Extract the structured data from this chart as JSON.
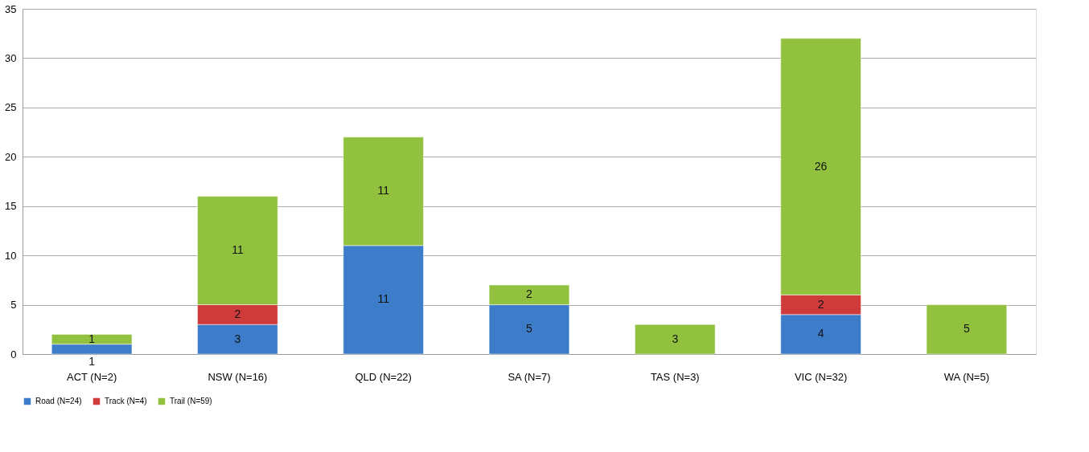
{
  "chart_data": {
    "type": "bar",
    "stacked": true,
    "categories": [
      "ACT (N=2)",
      "NSW (N=16)",
      "QLD (N=22)",
      "SA (N=7)",
      "TAS (N=3)",
      "VIC (N=32)",
      "WA (N=5)"
    ],
    "series": [
      {
        "name": "Road (N=24)",
        "color": "#3d7cc9",
        "values": [
          1,
          3,
          11,
          5,
          null,
          4,
          null
        ]
      },
      {
        "name": "Track (N=4)",
        "color": "#cf3b3b",
        "values": [
          null,
          2,
          null,
          null,
          null,
          2,
          null
        ]
      },
      {
        "name": "Trail (N=59)",
        "color": "#92c13f",
        "values": [
          1,
          11,
          11,
          2,
          3,
          26,
          5
        ]
      }
    ],
    "ylim": [
      0,
      35
    ],
    "yticks": [
      0,
      5,
      10,
      15,
      20,
      25,
      30,
      35
    ],
    "grid": "y",
    "legend": "bottom",
    "data_labels": true
  }
}
